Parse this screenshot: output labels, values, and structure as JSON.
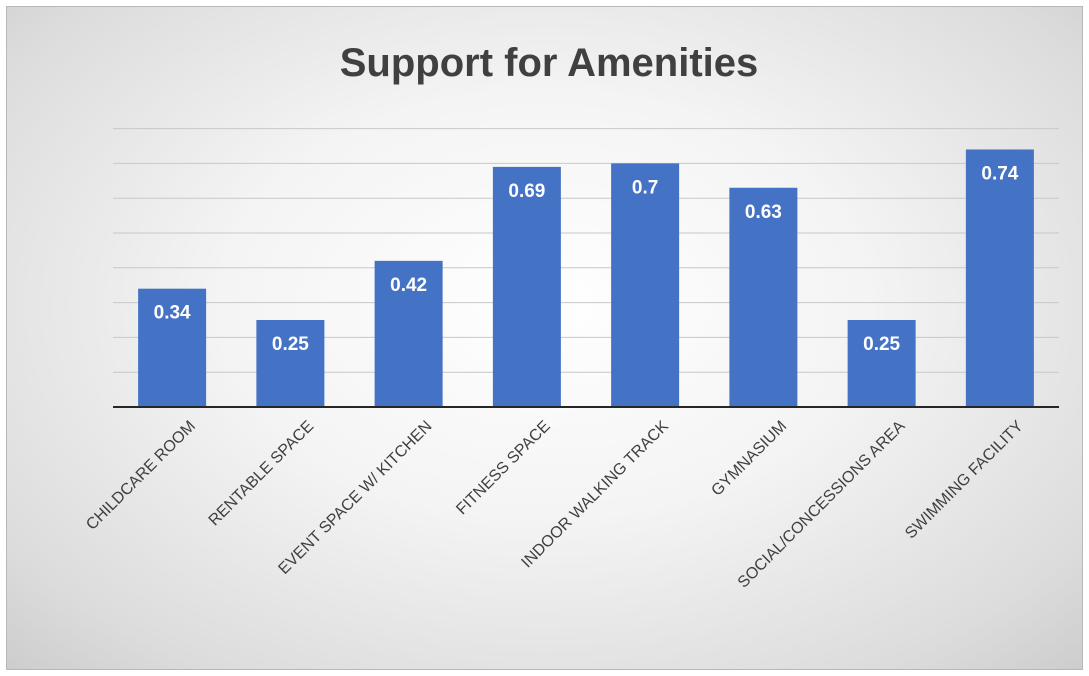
{
  "chart_data": {
    "type": "bar",
    "title": "Support for Amenities",
    "xlabel": "",
    "ylabel": "",
    "categories": [
      "CHILDCARE ROOM",
      "RENTABLE SPACE",
      "EVENT SPACE W/ KITCHEN",
      "FITNESS SPACE",
      "INDOOR WALKING TRACK",
      "GYMNASIUM",
      "SOCIAL/CONCESSIONS AREA",
      "SWIMMING FACILITY"
    ],
    "values": [
      0.34,
      0.25,
      0.42,
      0.69,
      0.7,
      0.63,
      0.25,
      0.74
    ],
    "data_labels": [
      "0.34",
      "0.25",
      "0.42",
      "0.69",
      "0.7",
      "0.63",
      "0.25",
      "0.74"
    ],
    "ylim": [
      0,
      0.8
    ],
    "gridline_step": 0.1,
    "grid": true,
    "legend": "none",
    "bar_color": "#4472C4",
    "axis_color": "#262626",
    "gridline_color": "#c8c8c8"
  }
}
